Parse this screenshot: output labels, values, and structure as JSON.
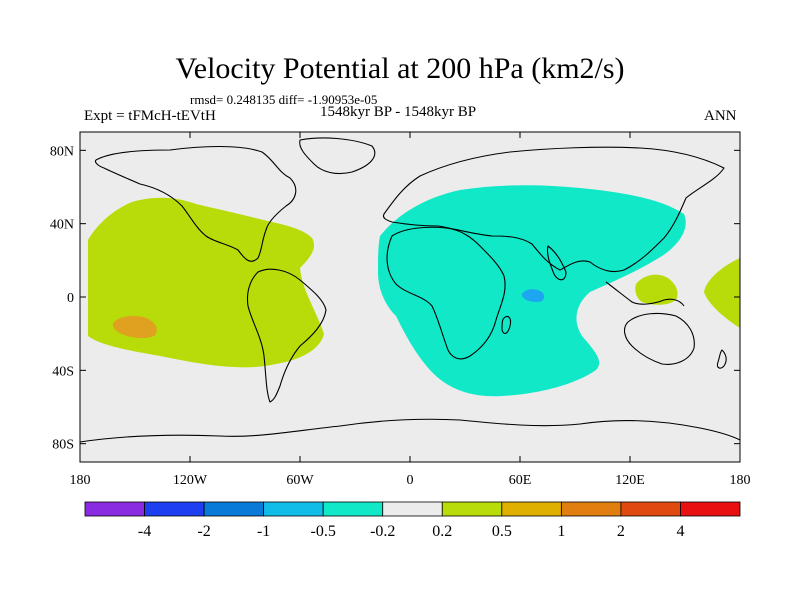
{
  "title": "Velocity Potential at 200 hPa (km2/s)",
  "stats": "rmsd= 0.248135  diff= -1.90953e-05",
  "experiment": "Expt = tFMcH-tEVtH",
  "period": "1548kyr BP - 1548kyr BP",
  "season": "ANN",
  "axes": {
    "lat_labels": [
      "80N",
      "40N",
      "0",
      "40S",
      "80S"
    ],
    "lat_values": [
      80,
      40,
      0,
      -40,
      -80
    ],
    "lon_labels": [
      "180",
      "120W",
      "60W",
      "0",
      "60E",
      "120E",
      "180"
    ],
    "lon_values": [
      -180,
      -120,
      -60,
      0,
      60,
      120,
      180
    ],
    "lat_range": [
      -90,
      90
    ],
    "lon_range": [
      -180,
      180
    ]
  },
  "colorbar": {
    "levels": [
      "-4",
      "-2",
      "-1",
      "-0.5",
      "-0.2",
      "0.2",
      "0.5",
      "1",
      "2",
      "4"
    ],
    "colors": [
      "#8a2be2",
      "#1e3ff0",
      "#0a7ad8",
      "#10bde8",
      "#10e8c8",
      "#ececec",
      "#b8dc0a",
      "#e0b000",
      "#e07f10",
      "#e04a10",
      "#e81010"
    ]
  },
  "colors": {
    "background": "#ececec",
    "positive_small": "#b8dc0a",
    "negative_small": "#10e8c8",
    "positive_mid": "#e0a020",
    "negative_mid": "#1ea6f0",
    "coast": "#000000"
  }
}
